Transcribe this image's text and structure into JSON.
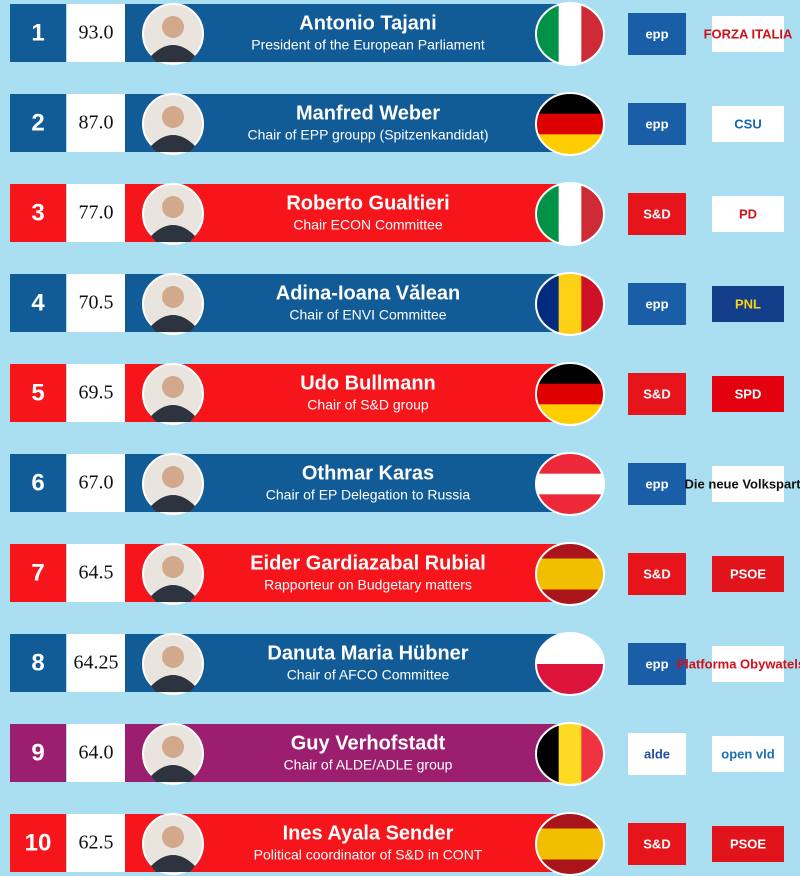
{
  "rows": [
    {
      "rank": "1",
      "score": "93.0",
      "name": "Antonio Tajani",
      "role": "President of the European Parliament",
      "color": "#115b97",
      "group_logo": "epp",
      "party_logo": "FORZA ITALIA"
    },
    {
      "rank": "2",
      "score": "87.0",
      "name": "Manfred Weber",
      "role": "Chair of EPP groupp (Spitzenkandidat)",
      "color": "#115b97",
      "group_logo": "epp",
      "party_logo": "CSU"
    },
    {
      "rank": "3",
      "score": "77.0",
      "name": "Roberto Gualtieri",
      "role": "Chair ECON Committee",
      "color": "#f5151b",
      "group_logo": "S&D",
      "party_logo": "PD"
    },
    {
      "rank": "4",
      "score": "70.5",
      "name": "Adina-Ioana Vălean",
      "role": "Chair of ENVI Committee",
      "color": "#115b97",
      "group_logo": "epp",
      "party_logo": "PNL"
    },
    {
      "rank": "5",
      "score": "69.5",
      "name": "Udo Bullmann",
      "role": "Chair of S&D group",
      "color": "#f5151b",
      "group_logo": "S&D",
      "party_logo": "SPD"
    },
    {
      "rank": "6",
      "score": "67.0",
      "name": "Othmar Karas",
      "role": "Chair of EP Delegation to Russia",
      "color": "#115b97",
      "group_logo": "epp",
      "party_logo": "Die neue Volkspartei"
    },
    {
      "rank": "7",
      "score": "64.5",
      "name": "Eider Gardiazabal Rubial",
      "role": "Rapporteur on Budgetary matters",
      "color": "#f5151b",
      "group_logo": "S&D",
      "party_logo": "PSOE"
    },
    {
      "rank": "8",
      "score": "64.25",
      "name": "Danuta Maria Hübner",
      "role": "Chair of AFCO Committee",
      "color": "#115b97",
      "group_logo": "epp",
      "party_logo": "Platforma Obywatelska"
    },
    {
      "rank": "9",
      "score": "64.0",
      "name": "Guy Verhofstadt",
      "role": "Chair of ALDE/ADLE group",
      "color": "#9b1f6e",
      "group_logo": "alde",
      "party_logo": "open vld"
    },
    {
      "rank": "10",
      "score": "62.5",
      "name": "Ines Ayala Sender",
      "role": "Political coordinator of S&D in CONT",
      "color": "#f5151b",
      "group_logo": "S&D",
      "party_logo": "PSOE"
    }
  ]
}
